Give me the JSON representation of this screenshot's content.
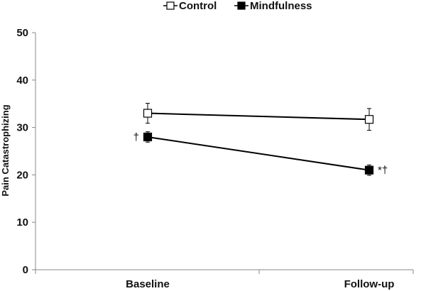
{
  "chart_data": {
    "type": "line",
    "categories": [
      "Baseline",
      "Follow-up"
    ],
    "ylabel": "Pain Catastrophizing",
    "xlabel": "",
    "ylim": [
      0,
      50
    ],
    "yticks": [
      0,
      10,
      20,
      30,
      40,
      50
    ],
    "grid": false,
    "legend_position": "top",
    "series": [
      {
        "name": "Control",
        "marker": "open-square",
        "color": "#000000",
        "values": [
          33,
          31.7
        ],
        "error": [
          2.1,
          2.3
        ],
        "annotations": [
          "",
          ""
        ]
      },
      {
        "name": "Mindfulness",
        "marker": "filled-square",
        "color": "#000000",
        "values": [
          28,
          21
        ],
        "error": [
          1.1,
          1.1
        ],
        "annotations": [
          "†",
          "*†"
        ]
      }
    ]
  }
}
